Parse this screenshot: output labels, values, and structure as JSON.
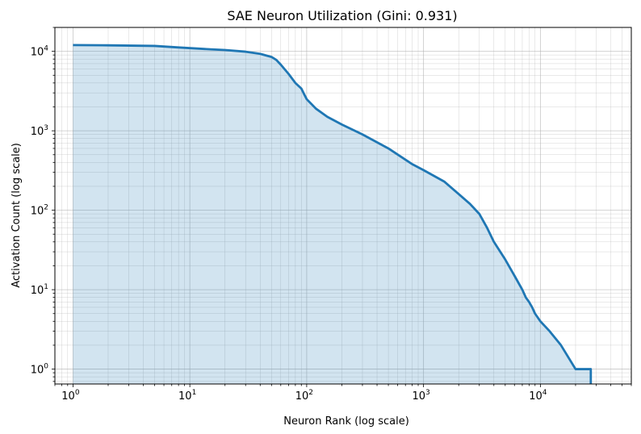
{
  "chart_data": {
    "type": "area",
    "title": "SAE Neuron Utilization (Gini: 0.931)",
    "xlabel": "Neuron Rank (log scale)",
    "ylabel": "Activation Count (log scale)",
    "xscale": "log",
    "yscale": "log",
    "xlim": [
      0.7,
      60000
    ],
    "ylim": [
      0.65,
      20000
    ],
    "grid": true,
    "x_ticks": [
      {
        "base": "10",
        "exp": "0",
        "value": 1
      },
      {
        "base": "10",
        "exp": "1",
        "value": 10
      },
      {
        "base": "10",
        "exp": "2",
        "value": 100
      },
      {
        "base": "10",
        "exp": "3",
        "value": 1000
      },
      {
        "base": "10",
        "exp": "4",
        "value": 10000
      }
    ],
    "y_ticks": [
      {
        "base": "10",
        "exp": "0",
        "value": 1
      },
      {
        "base": "10",
        "exp": "1",
        "value": 10
      },
      {
        "base": "10",
        "exp": "2",
        "value": 100
      },
      {
        "base": "10",
        "exp": "3",
        "value": 1000
      },
      {
        "base": "10",
        "exp": "4",
        "value": 10000
      }
    ],
    "series": [
      {
        "color": "#1f77b4",
        "fill_color": "#1f77b4",
        "fill_opacity": 0.2,
        "points": [
          [
            1,
            12000
          ],
          [
            2,
            11900
          ],
          [
            5,
            11700
          ],
          [
            8,
            11200
          ],
          [
            15,
            10600
          ],
          [
            20,
            10400
          ],
          [
            30,
            9900
          ],
          [
            40,
            9300
          ],
          [
            50,
            8500
          ],
          [
            55,
            7800
          ],
          [
            60,
            6800
          ],
          [
            70,
            5200
          ],
          [
            80,
            4000
          ],
          [
            90,
            3400
          ],
          [
            95,
            2900
          ],
          [
            100,
            2500
          ],
          [
            120,
            1900
          ],
          [
            150,
            1500
          ],
          [
            200,
            1200
          ],
          [
            300,
            900
          ],
          [
            500,
            600
          ],
          [
            800,
            380
          ],
          [
            1000,
            320
          ],
          [
            1500,
            230
          ],
          [
            2000,
            160
          ],
          [
            2500,
            120
          ],
          [
            3000,
            90
          ],
          [
            3500,
            60
          ],
          [
            4000,
            40
          ],
          [
            5000,
            24
          ],
          [
            6000,
            15
          ],
          [
            7000,
            10
          ],
          [
            7500,
            8
          ],
          [
            8000,
            7
          ],
          [
            8500,
            6
          ],
          [
            9000,
            5
          ],
          [
            10000,
            4
          ],
          [
            12000,
            3
          ],
          [
            15000,
            2
          ],
          [
            20000,
            1
          ],
          [
            27000,
            1
          ]
        ]
      }
    ]
  }
}
